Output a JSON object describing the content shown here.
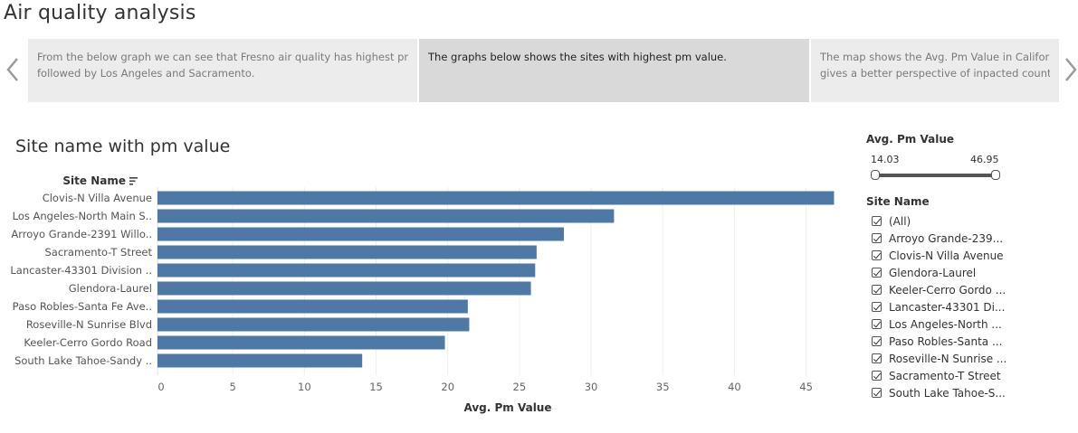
{
  "story": {
    "title": "Air quality analysis",
    "points": [
      {
        "line1": "From the below graph we can see that Fresno air quality has highest pm",
        "line2": "followed by Los Angeles and Sacramento."
      },
      {
        "line1": "The graphs below shows the sites with highest pm value.",
        "line2": ""
      },
      {
        "line1": "The map shows the Avg. Pm Value in California",
        "line2": "gives a better perspective of inpacted counties"
      }
    ],
    "active_index": 1
  },
  "sheet": {
    "title": "Site name with pm value"
  },
  "chart_data": {
    "type": "bar",
    "orientation": "horizontal",
    "title": "Site name with pm value",
    "ylabel": "Site Name",
    "xlabel": "Avg. Pm Value",
    "categories": [
      "Clovis-N Villa Avenue",
      "Los Angeles-North Main S..",
      "Arroyo Grande-2391 Willo..",
      "Sacramento-T Street",
      "Lancaster-43301 Division ..",
      "Glendora-Laurel",
      "Paso Robles-Santa Fe Ave..",
      "Roseville-N Sunrise Blvd",
      "Keeler-Cerro Gordo Road",
      "South Lake Tahoe-Sandy .."
    ],
    "values": [
      46.95,
      31.6,
      28.1,
      26.2,
      26.1,
      25.8,
      21.4,
      21.5,
      19.8,
      14.03
    ],
    "xlim": [
      0,
      48.5
    ],
    "xticks": [
      0,
      5,
      10,
      15,
      20,
      25,
      30,
      35,
      40,
      45
    ],
    "grid": true,
    "bar_color": "#4e79a7"
  },
  "filters": {
    "range": {
      "title": "Avg. Pm Value",
      "min": "14.03",
      "max": "46.95"
    },
    "site": {
      "title": "Site Name",
      "options": [
        "(All)",
        "Arroyo Grande-239...",
        "Clovis-N Villa Avenue",
        "Glendora-Laurel",
        "Keeler-Cerro Gordo ...",
        "Lancaster-43301 Di...",
        "Los Angeles-North ...",
        "Paso Robles-Santa ...",
        "Roseville-N Sunrise ...",
        "Sacramento-T Street",
        "South Lake Tahoe-S..."
      ]
    }
  }
}
